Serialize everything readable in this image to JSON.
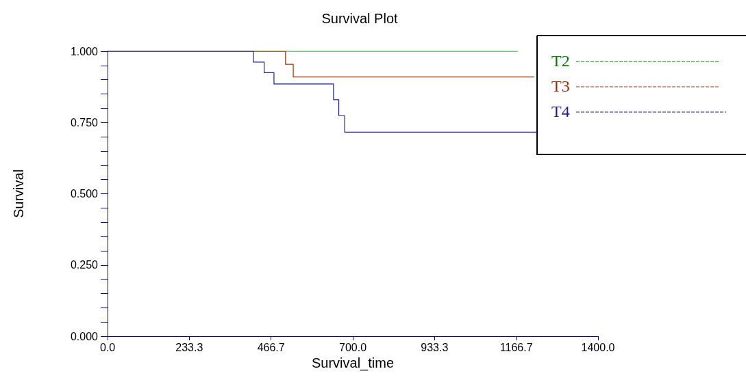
{
  "chart_data": {
    "type": "step",
    "title": "Survival Plot",
    "xlabel": "Survival_time",
    "ylabel": "Survival",
    "xlim": [
      0,
      1400
    ],
    "xticks": [
      {
        "value": 0,
        "label": "0.0"
      },
      233.3,
      466.7,
      {
        "value": 700,
        "label": "700.0"
      },
      933.3,
      1166.7,
      {
        "value": 1400,
        "label": "1400.0"
      }
    ],
    "ylim": [
      0,
      1
    ],
    "yticks": [
      {
        "value": 0,
        "label": "0.000"
      },
      {
        "value": 0.25,
        "label": "0.250"
      },
      {
        "value": 0.5,
        "label": "0.500"
      },
      {
        "value": 0.75,
        "label": "0.750"
      },
      {
        "value": 1,
        "label": "1.000"
      }
    ],
    "grid": false,
    "legend": "top right",
    "marker": "none",
    "line_style": "solid",
    "series": [
      {
        "name": "T2",
        "color": "#008000",
        "x": [
          0,
          1171
        ],
        "values": [
          1,
          1
        ]
      },
      {
        "name": "T3",
        "color": "#a52a00",
        "x": [
          0,
          508,
          530,
          1218
        ],
        "values": [
          1,
          0.954,
          0.91,
          0.91
        ]
      },
      {
        "name": "T4",
        "color": "#1a1aa0",
        "x": [
          0,
          416,
          447,
          475,
          645,
          660,
          677,
          1224
        ],
        "values": [
          1,
          0.962,
          0.925,
          0.885,
          0.83,
          0.774,
          0.716,
          0.716
        ]
      }
    ]
  }
}
